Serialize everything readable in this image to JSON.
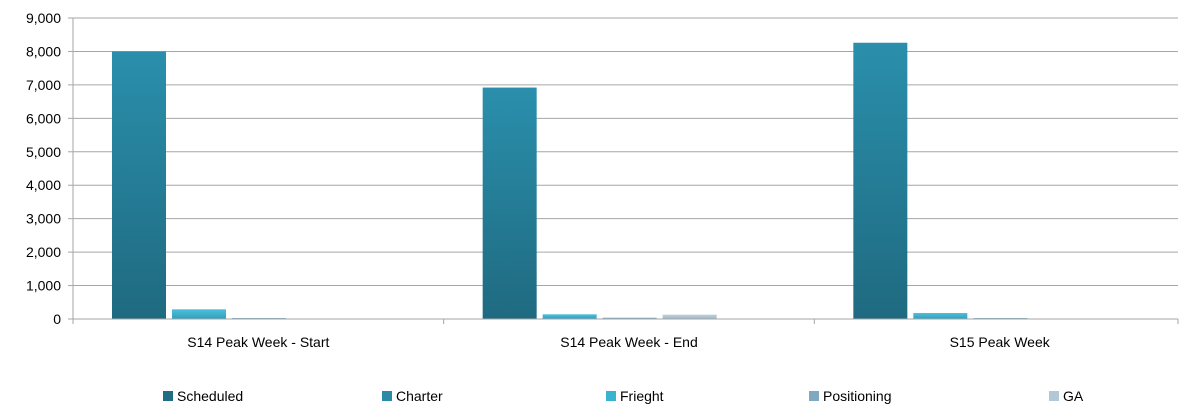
{
  "chart_data": {
    "type": "bar",
    "categories": [
      "S14 Peak Week - Start",
      "S14 Peak Week - End",
      "S15 Peak Week"
    ],
    "series": [
      {
        "name": "Scheduled",
        "values": [
          0,
          0,
          0
        ],
        "color": "#1f6e85"
      },
      {
        "name": "Charter",
        "values": [
          8000,
          6920,
          8260
        ],
        "color": "#2a8ba8"
      },
      {
        "name": "Frieght",
        "values": [
          290,
          140,
          180
        ],
        "color": "#3bb2d0"
      },
      {
        "name": "Positioning",
        "values": [
          10,
          40,
          10
        ],
        "color": "#7fa9c1"
      },
      {
        "name": "GA",
        "values": [
          0,
          130,
          0
        ],
        "color": "#a9c1d1"
      }
    ],
    "yticks": [
      "0",
      "1,000",
      "2,000",
      "3,000",
      "4,000",
      "5,000",
      "6,000",
      "7,000",
      "8,000",
      "9,000"
    ],
    "ylim": [
      0,
      9000
    ],
    "grid": true,
    "legend_position": "bottom"
  }
}
